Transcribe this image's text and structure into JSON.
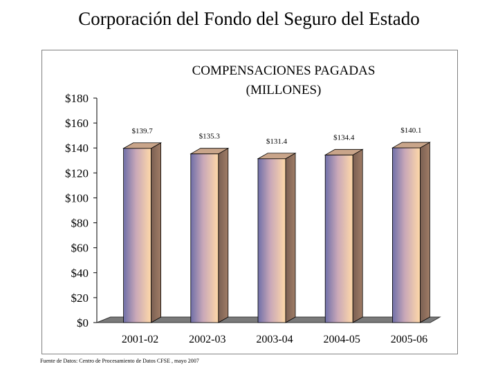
{
  "page_title": "Corporación del Fondo del Seguro del Estado",
  "footnote": "Fuente de Datos: Centro de Procesamiento de Datos CFSE ,  mayo 2007",
  "colors": {
    "bar_light": "#ffd9a8",
    "bar_dark": "#6f6fa8",
    "bar_side": "#8f6f5a",
    "bar_top": "#c9a58a",
    "floor": "#7a7a7a"
  },
  "chart_data": {
    "type": "bar",
    "title_line1": "COMPENSACIONES PAGADAS",
    "title_line2": "(MILLONES)",
    "categories": [
      "2001-02",
      "2002-03",
      "2003-04",
      "2004-05",
      "2005-06"
    ],
    "values": [
      139.7,
      135.3,
      131.4,
      134.4,
      140.1
    ],
    "data_labels": [
      "$139.7",
      "$135.3",
      "$131.4",
      "$134.4",
      "$140.1"
    ],
    "y_ticks": [
      "$0",
      "$20",
      "$40",
      "$60",
      "$80",
      "$100",
      "$120",
      "$140",
      "$160",
      "$180"
    ],
    "ylim": [
      0,
      180
    ],
    "grid": false,
    "legend": "none",
    "style": "3d-bar"
  }
}
